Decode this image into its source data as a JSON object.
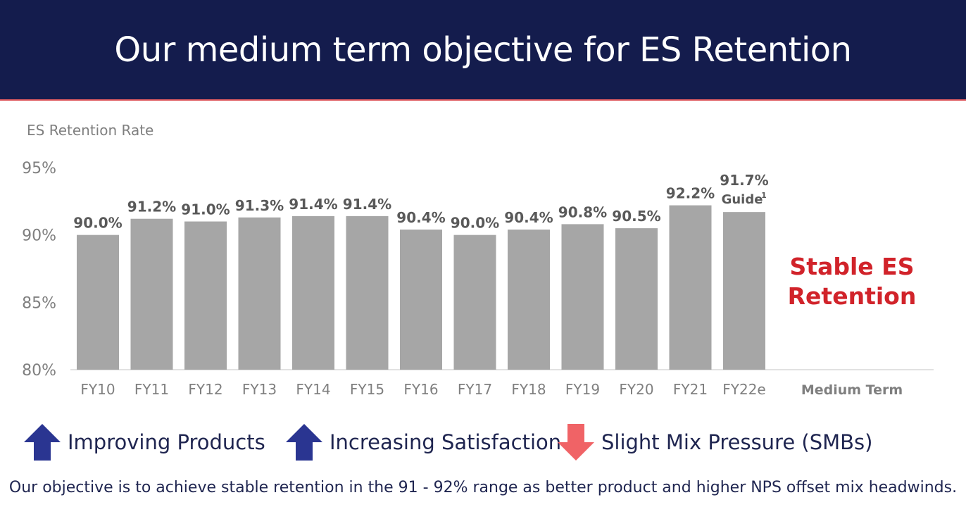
{
  "header": {
    "title": "Our medium term objective for ES Retention"
  },
  "chart_data": {
    "type": "bar",
    "ylabel": "ES Retention Rate",
    "ylim": [
      80,
      95
    ],
    "yticks": [
      "80%",
      "85%",
      "90%",
      "95%"
    ],
    "ytick_values": [
      80,
      85,
      90,
      95
    ],
    "categories": [
      "FY10",
      "FY11",
      "FY12",
      "FY13",
      "FY14",
      "FY15",
      "FY16",
      "FY17",
      "FY18",
      "FY19",
      "FY20",
      "FY21",
      "FY22e"
    ],
    "values": [
      90.0,
      91.2,
      91.0,
      91.3,
      91.4,
      91.4,
      90.4,
      90.0,
      90.4,
      90.8,
      90.5,
      92.2,
      91.7
    ],
    "data_labels": [
      "90.0%",
      "91.2%",
      "91.0%",
      "91.3%",
      "91.4%",
      "91.4%",
      "90.4%",
      "90.0%",
      "90.4%",
      "90.8%",
      "90.5%",
      "92.2%",
      "91.7%"
    ],
    "extra_label": {
      "index": 12,
      "text": "Guide",
      "superscript": "1"
    },
    "extra_category": "Medium Term",
    "bar_color": "#a6a6a6",
    "grid": false
  },
  "callout": {
    "line1": "Stable ES",
    "line2": "Retention",
    "color": "#d1232a"
  },
  "indicators": [
    {
      "icon": "arrow-up-icon",
      "label": "Improving Products",
      "color": "#2a3591"
    },
    {
      "icon": "arrow-up-icon",
      "label": "Increasing Satisfaction",
      "color": "#2a3591"
    },
    {
      "icon": "arrow-down-icon",
      "label": "Slight Mix Pressure (SMBs)",
      "color": "#f06366"
    }
  ],
  "footnote": "Our objective is to achieve stable retention in the 91 - 92% range as better product and higher NPS offset mix headwinds."
}
